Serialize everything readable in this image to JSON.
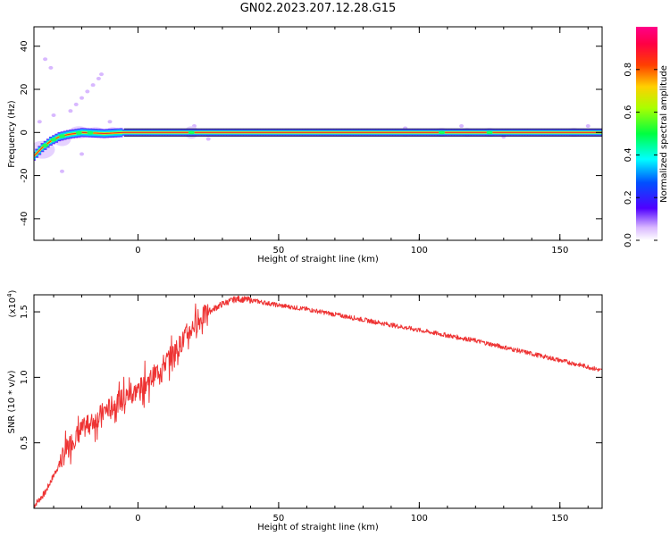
{
  "title": "GN02.2023.207.12.28.G15",
  "colors": {
    "snr_line": "#ee3333",
    "axis": "#000000"
  },
  "chart_data": [
    {
      "type": "heatmap",
      "xlabel": "Height of straight line (km)",
      "ylabel": "Frequency (Hz)",
      "xlim": [
        -37,
        165
      ],
      "ylim": [
        -50,
        49
      ],
      "xticks": [
        0,
        50,
        100,
        150
      ],
      "yticks": [
        -40,
        -20,
        0,
        20,
        40
      ],
      "ytick_labels": [
        "-40",
        "-20",
        "0",
        "20",
        "40"
      ],
      "dominant_frequency": {
        "x": [
          -37,
          -34,
          -31,
          -28,
          -25,
          -20,
          -12,
          -5,
          0,
          50,
          100,
          165
        ],
        "y": [
          -11,
          -7,
          -4,
          -2,
          -1,
          0,
          -0.5,
          0,
          0,
          0,
          0,
          0
        ]
      },
      "colorbar": {
        "label": "Normalized spectral amplitude",
        "range": [
          0.0,
          1.0
        ],
        "ticks": [
          0.0,
          0.2,
          0.4,
          0.6,
          0.8
        ],
        "tick_labels": [
          "0.0",
          "0.2",
          "0.4",
          "0.6",
          "0.8"
        ]
      }
    },
    {
      "type": "line",
      "xlabel": "Height of straight line (km)",
      "ylabel": "SNR (10 * v/v)",
      "y_exponent_label": "(x10",
      "y_exponent_sup": "4",
      "y_exponent_close": ")",
      "xlim": [
        -37,
        165
      ],
      "ylim": [
        0.0,
        1.63
      ],
      "xticks": [
        0,
        50,
        100,
        150
      ],
      "yticks": [
        0.5,
        1.0,
        1.5
      ],
      "ytick_labels": [
        "0.5",
        "1.0",
        "1.5"
      ],
      "series": [
        {
          "x": [
            -37,
            -33,
            -30,
            -27,
            -24,
            -20,
            -16,
            -12,
            -8,
            -4,
            0,
            5,
            10,
            15,
            20,
            25,
            30,
            35,
            40,
            45,
            50,
            60,
            70,
            80,
            90,
            100,
            110,
            120,
            130,
            140,
            150,
            160,
            165
          ],
          "y": [
            0.02,
            0.12,
            0.25,
            0.38,
            0.5,
            0.6,
            0.66,
            0.74,
            0.8,
            0.86,
            0.9,
            1.0,
            1.12,
            1.25,
            1.4,
            1.5,
            1.56,
            1.6,
            1.59,
            1.57,
            1.55,
            1.52,
            1.48,
            1.44,
            1.4,
            1.36,
            1.32,
            1.28,
            1.23,
            1.18,
            1.13,
            1.08,
            1.05
          ]
        }
      ]
    }
  ]
}
